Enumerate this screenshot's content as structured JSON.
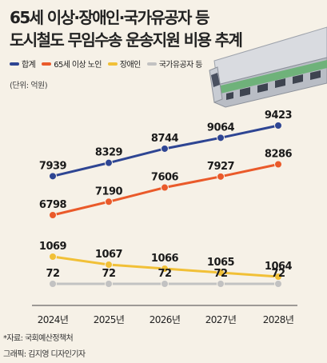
{
  "header": {
    "title_line1": "65세 이상·장애인·국가유공자 등",
    "title_line2": "도시철도 무임수송 운송지원 비용 추계"
  },
  "unit_label": "(단위: 억원)",
  "footer": {
    "source": "*자료: 국회예산정책처",
    "credit": "그래픽: 김지영 디자인기자"
  },
  "chart_data": {
    "type": "line",
    "title": "65세 이상·장애인·국가유공자 등 도시철도 무임수송 운송지원 비용 추계",
    "unit": "(단위: 억원)",
    "categories": [
      "2024년",
      "2025년",
      "2026년",
      "2027년",
      "2028년"
    ],
    "series": [
      {
        "name": "합계",
        "color": "#2e4593",
        "values": [
          7939,
          8329,
          8744,
          9064,
          9423
        ]
      },
      {
        "name": "65세 이상 노인",
        "color": "#ea5a2a",
        "values": [
          6798,
          7190,
          7606,
          7927,
          8286
        ]
      },
      {
        "name": "장애인",
        "color": "#f1c037",
        "values": [
          1069,
          1067,
          1066,
          1065,
          1064
        ]
      },
      {
        "name": "국가유공자 등",
        "color": "#c2c2c2",
        "values": [
          72,
          72,
          72,
          72,
          72
        ]
      }
    ],
    "y_scale": "broken",
    "grid": false,
    "legend_position": "top-left"
  }
}
